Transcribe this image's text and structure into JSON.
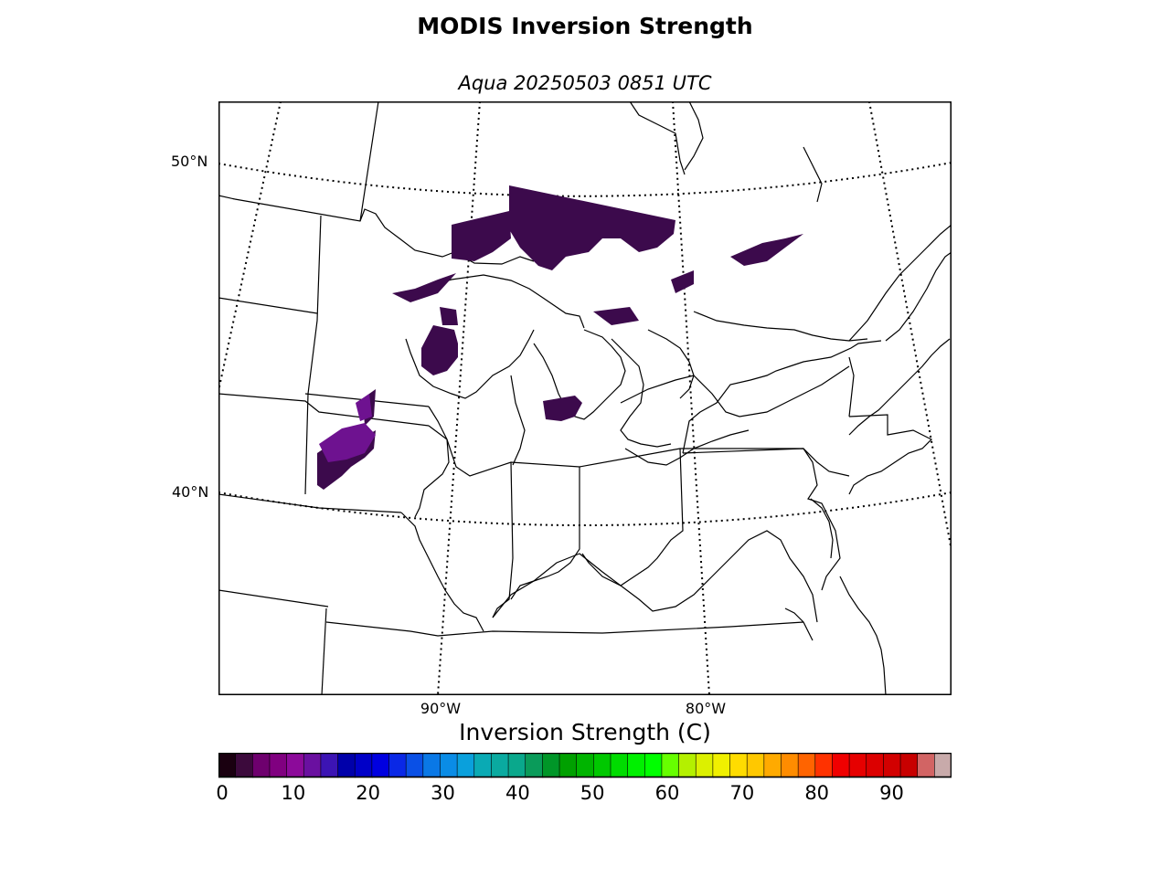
{
  "title": "MODIS Inversion Strength",
  "subtitle": "Aqua 20250503 0851 UTC",
  "map": {
    "lat_labels": [
      "50°N",
      "40°N"
    ],
    "lon_labels": [
      "90°W",
      "80°W"
    ]
  },
  "colorbar": {
    "label": "Inversion Strength (C)",
    "range": [
      0,
      98
    ],
    "ticks": [
      "0",
      "10",
      "20",
      "30",
      "40",
      "50",
      "60",
      "70",
      "80",
      "90"
    ],
    "colors": [
      "#1a0010",
      "#3c0a3c",
      "#6e006e",
      "#800080",
      "#8c0a9a",
      "#6a10a0",
      "#3c14b4",
      "#0000aa",
      "#0000c8",
      "#0000e0",
      "#0a28e6",
      "#0a50e6",
      "#0a78e6",
      "#0a8ce6",
      "#0aa0dc",
      "#0aaab4",
      "#0aaaa0",
      "#0aa88c",
      "#0a9b5a",
      "#009628",
      "#00a000",
      "#00b400",
      "#00c800",
      "#00dc00",
      "#00f000",
      "#00ff00",
      "#66ff00",
      "#b4f000",
      "#dcf000",
      "#f0f000",
      "#ffdc00",
      "#ffc800",
      "#ffaa00",
      "#ff8c00",
      "#ff6400",
      "#ff3200",
      "#f00000",
      "#e60000",
      "#dc0000",
      "#d20000",
      "#c80000",
      "#d26464",
      "#c8aaaa"
    ]
  },
  "inversion_color": "#3c0a4c"
}
